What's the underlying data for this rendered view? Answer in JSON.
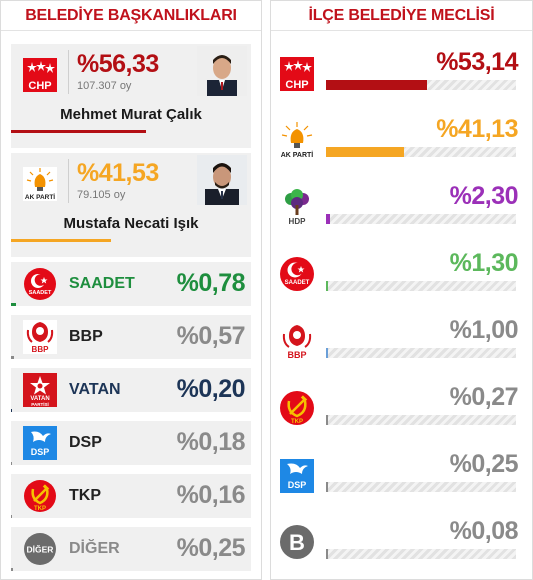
{
  "left": {
    "title": "BELEDİYE BAŞKANLIKLARI",
    "mayors": [
      {
        "party": "CHP",
        "pct": "%56,33",
        "votes": "107.307 oy",
        "name": "Mehmet Murat Çalık",
        "color": "#b30f14",
        "share": 56.33
      },
      {
        "party": "AK PARTİ",
        "pct": "%41,53",
        "votes": "79.105 oy",
        "name": "Mustafa Necati Işık",
        "color": "#f5a623",
        "share": 41.53
      }
    ],
    "others": [
      {
        "name": "SAADET",
        "pct": "%0,78",
        "color": "#1e8e3e",
        "name_color": "#1e8e3e",
        "logo": "saadet-logo",
        "share": 0.78
      },
      {
        "name": "BBP",
        "pct": "%0,57",
        "color": "#8a8a8a",
        "name_color": "#222222",
        "logo": "bbp-logo",
        "share": 0.57
      },
      {
        "name": "VATAN",
        "pct": "%0,20",
        "color": "#1d3557",
        "name_color": "#1d3557",
        "logo": "vatan-logo",
        "share": 0.2
      },
      {
        "name": "DSP",
        "pct": "%0,18",
        "color": "#8a8a8a",
        "name_color": "#222222",
        "logo": "dsp-logo",
        "share": 0.18
      },
      {
        "name": "TKP",
        "pct": "%0,16",
        "color": "#8a8a8a",
        "name_color": "#222222",
        "logo": "tkp-logo",
        "share": 0.16
      },
      {
        "name": "DİĞER",
        "pct": "%0,25",
        "color": "#8a8a8a",
        "name_color": "#8a8a8a",
        "logo": "diger-logo",
        "logo_text": "DİĞER",
        "share": 0.25
      }
    ]
  },
  "right": {
    "title": "İLÇE BELEDİYE MECLİSİ",
    "parties": [
      {
        "party": "CHP",
        "pct": "%53,14",
        "color": "#b30f14",
        "share": 53.14
      },
      {
        "party": "AK PARTİ",
        "pct": "%41,13",
        "color": "#f5a623",
        "share": 41.13
      },
      {
        "party": "HDP",
        "pct": "%2,30",
        "color": "#9b30b8",
        "share": 2.3
      },
      {
        "party": "SAADET",
        "pct": "%1,30",
        "color": "#5cb85c",
        "share": 1.3
      },
      {
        "party": "BBP",
        "pct": "%1,00",
        "color": "#8a8a8a",
        "bar_color": "#6a9fd8",
        "share": 1.0
      },
      {
        "party": "TKP",
        "pct": "%0,27",
        "color": "#8a8a8a",
        "share": 0.27
      },
      {
        "party": "DSP",
        "pct": "%0,25",
        "color": "#8a8a8a",
        "share": 0.25
      },
      {
        "party": "B",
        "pct": "%0,08",
        "color": "#8a8a8a",
        "share": 0.08
      }
    ]
  },
  "logos": {
    "chp": "CHP",
    "akp": "AK PARTİ",
    "hdp": "HDP",
    "saadet": "SAADET",
    "bbp": "BBP",
    "vatan_top": "VATAN",
    "vatan_bottom": "PARTİSİ",
    "dsp": "DSP",
    "tkp": "TKP",
    "b": "B"
  }
}
